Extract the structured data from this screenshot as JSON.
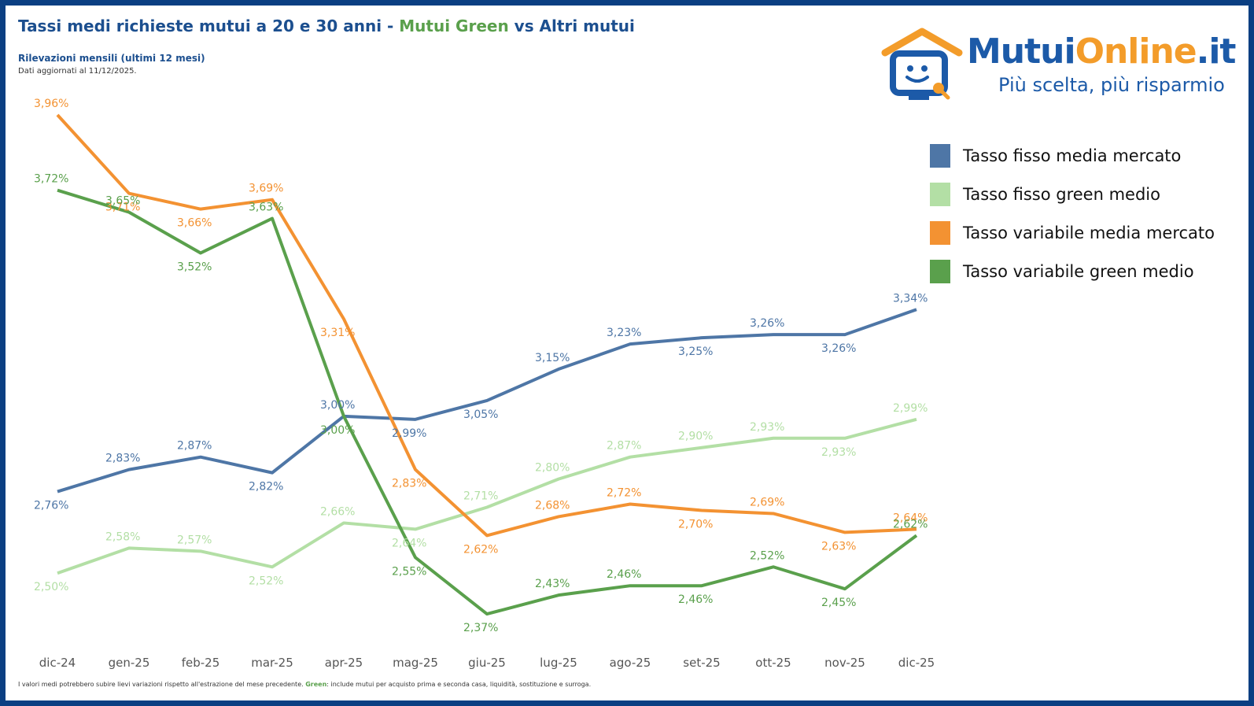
{
  "header": {
    "title_part1": "Tassi medi richieste mutui a 20 e 30 anni - ",
    "title_green": "Mutui Green",
    "title_part2": " vs Altri mutui",
    "subtitle": "Rilevazioni mensili (ultimi 12 mesi)",
    "updated": "Dati aggiornati al 11/12/2025."
  },
  "logo": {
    "name_part1": "Mutui",
    "name_part2": "Online",
    "name_part3": ".it",
    "tagline": "Più scelta, più risparmio"
  },
  "footnote": {
    "text1": "I valori medi potrebbero subire lievi variazioni rispetto all'estrazione del mese precedente. ",
    "green_word": "Green",
    "text2": ": include mutui per acquisto prima e seconda casa, liquidità, sostituzione e surroga."
  },
  "colors": {
    "fisso_mercato": "#4e76a6",
    "fisso_green": "#b3dfa5",
    "variabile_mercato": "#f39232",
    "variabile_green": "#5aa04c"
  },
  "chart_data": {
    "type": "line",
    "categories": [
      "dic-24",
      "gen-25",
      "feb-25",
      "mar-25",
      "apr-25",
      "mag-25",
      "giu-25",
      "lug-25",
      "ago-25",
      "set-25",
      "ott-25",
      "nov-25",
      "dic-25"
    ],
    "series": [
      {
        "name": "Tasso fisso media mercato",
        "color": "#4e76a6",
        "values": [
          2.76,
          2.83,
          2.87,
          2.82,
          3.0,
          2.99,
          3.05,
          3.15,
          3.23,
          3.25,
          3.26,
          3.26,
          3.34
        ],
        "labels": [
          "2,76%",
          "2,83%",
          "2,87%",
          "2,82%",
          "3,00%",
          "2,99%",
          "3,05%",
          "3,15%",
          "3,23%",
          "3,25%",
          "3,26%",
          "3,26%",
          "3,34%"
        ]
      },
      {
        "name": "Tasso fisso green medio",
        "color": "#b3dfa5",
        "values": [
          2.5,
          2.58,
          2.57,
          2.52,
          2.66,
          2.64,
          2.71,
          2.8,
          2.87,
          2.9,
          2.93,
          2.93,
          2.99
        ],
        "labels": [
          "2,50%",
          "2,58%",
          "2,57%",
          "2,52%",
          "2,66%",
          "2,64%",
          "2,71%",
          "2,80%",
          "2,87%",
          "2,90%",
          "2,93%",
          "2,93%",
          "2,99%"
        ]
      },
      {
        "name": "Tasso variabile media mercato",
        "color": "#f39232",
        "values": [
          3.96,
          3.71,
          3.66,
          3.69,
          3.31,
          2.83,
          2.62,
          2.68,
          2.72,
          2.7,
          2.69,
          2.63,
          2.64
        ],
        "labels": [
          "3,96%",
          "3,71%",
          "3,66%",
          "3,69%",
          "3,31%",
          "2,83%",
          "2,62%",
          "2,68%",
          "2,72%",
          "2,70%",
          "2,69%",
          "2,63%",
          "2,64%"
        ]
      },
      {
        "name": "Tasso variabile green medio",
        "color": "#5aa04c",
        "values": [
          3.72,
          3.65,
          3.52,
          3.63,
          3.0,
          2.55,
          2.37,
          2.43,
          2.46,
          2.46,
          2.52,
          2.45,
          2.62
        ],
        "labels": [
          "3,72%",
          "3,65%",
          "3,52%",
          "3,63%",
          "3,00%",
          "2,55%",
          "2,37%",
          "2,43%",
          "2,46%",
          "2,46%",
          "2,52%",
          "2,45%",
          "2,62%"
        ]
      }
    ],
    "ylim": [
      2.3,
      4.0
    ],
    "grid": false,
    "legend": "right"
  }
}
